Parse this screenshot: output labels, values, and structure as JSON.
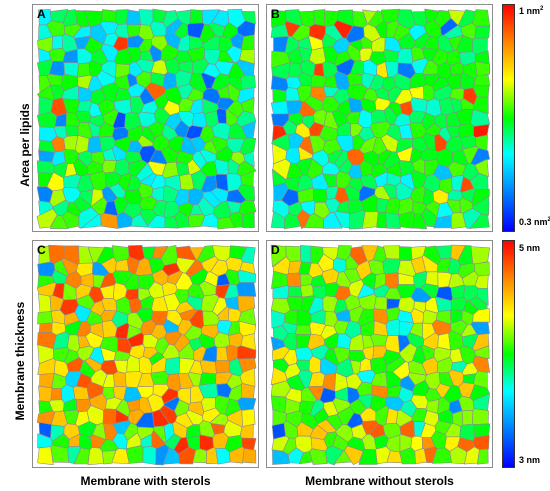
{
  "panels": [
    {
      "letter": "A",
      "seed": 11,
      "palette": "area-sterols"
    },
    {
      "letter": "B",
      "seed": 29,
      "palette": "area-nosterols"
    },
    {
      "letter": "C",
      "seed": 47,
      "palette": "thick-sterols"
    },
    {
      "letter": "D",
      "seed": 83,
      "palette": "thick-nosterols"
    }
  ],
  "row_labels": {
    "top": "Area per lipids",
    "bottom": "Membrane thickness"
  },
  "col_labels": {
    "left": "Membrane with sterols",
    "right": "Membrane without sterols"
  },
  "colorbars": {
    "area": {
      "max": "1 nm",
      "max_sup": "2",
      "min": "0.3 nm",
      "min_sup": "2"
    },
    "thickness": {
      "max": "5 nm",
      "min": "3 nm"
    }
  },
  "colors": {
    "scale": [
      "#ff0000",
      "#ff8000",
      "#ffff00",
      "#00ff00",
      "#00ffff",
      "#0080ff",
      "#0000ff"
    ],
    "border": "#8c8c8c"
  }
}
